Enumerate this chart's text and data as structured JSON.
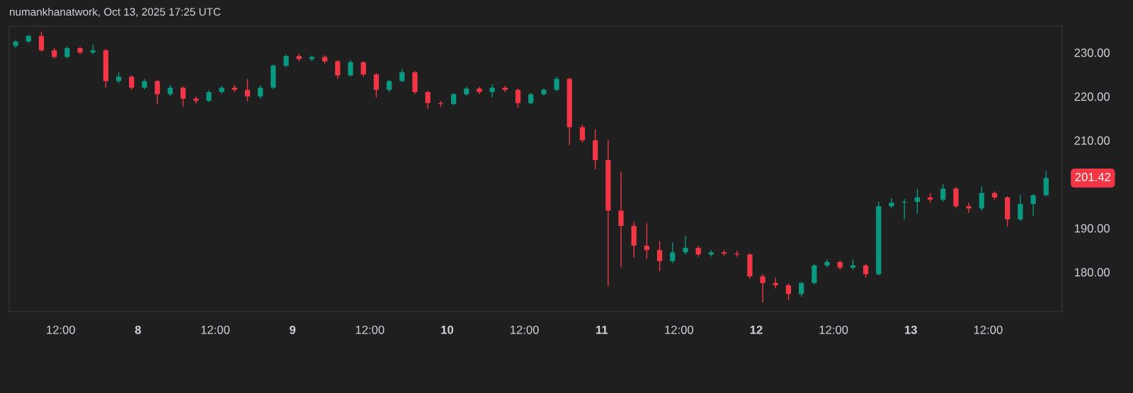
{
  "chart_data": {
    "type": "candlestick",
    "title": "numankhanatwork, Oct 13, 2025 17:25 UTC",
    "x": [
      "2025-10-07T05:00",
      "2025-10-07T07:00",
      "2025-10-07T09:00",
      "2025-10-07T11:00",
      "2025-10-07T13:00",
      "2025-10-07T15:00",
      "2025-10-07T17:00",
      "2025-10-07T19:00",
      "2025-10-07T21:00",
      "2025-10-07T23:00",
      "2025-10-08T01:00",
      "2025-10-08T03:00",
      "2025-10-08T05:00",
      "2025-10-08T07:00",
      "2025-10-08T09:00",
      "2025-10-08T11:00",
      "2025-10-08T13:00",
      "2025-10-08T15:00",
      "2025-10-08T17:00",
      "2025-10-08T19:00",
      "2025-10-08T21:00",
      "2025-10-08T23:00",
      "2025-10-09T01:00",
      "2025-10-09T03:00",
      "2025-10-09T05:00",
      "2025-10-09T07:00",
      "2025-10-09T09:00",
      "2025-10-09T11:00",
      "2025-10-09T13:00",
      "2025-10-09T15:00",
      "2025-10-09T17:00",
      "2025-10-09T19:00",
      "2025-10-09T21:00",
      "2025-10-09T23:00",
      "2025-10-10T01:00",
      "2025-10-10T03:00",
      "2025-10-10T05:00",
      "2025-10-10T07:00",
      "2025-10-10T09:00",
      "2025-10-10T11:00",
      "2025-10-10T13:00",
      "2025-10-10T15:00",
      "2025-10-10T17:00",
      "2025-10-10T19:00",
      "2025-10-10T21:00",
      "2025-10-10T23:00",
      "2025-10-11T01:00",
      "2025-10-11T03:00",
      "2025-10-11T05:00",
      "2025-10-11T07:00",
      "2025-10-11T09:00",
      "2025-10-11T11:00",
      "2025-10-11T13:00",
      "2025-10-11T15:00",
      "2025-10-11T17:00",
      "2025-10-11T19:00",
      "2025-10-11T21:00",
      "2025-10-11T23:00",
      "2025-10-12T01:00",
      "2025-10-12T03:00",
      "2025-10-12T05:00",
      "2025-10-12T07:00",
      "2025-10-12T09:00",
      "2025-10-12T11:00",
      "2025-10-12T13:00",
      "2025-10-12T15:00",
      "2025-10-12T17:00",
      "2025-10-12T19:00",
      "2025-10-12T21:00",
      "2025-10-12T23:00",
      "2025-10-13T01:00",
      "2025-10-13T03:00",
      "2025-10-13T05:00",
      "2025-10-13T07:00",
      "2025-10-13T09:00",
      "2025-10-13T11:00",
      "2025-10-13T13:00",
      "2025-10-13T15:00",
      "2025-10-13T17:00",
      "2025-10-13T19:00",
      "2025-10-13T21:00"
    ],
    "ohlc": [
      [
        231.5,
        232.8,
        231.0,
        232.5
      ],
      [
        232.5,
        234.0,
        232.2,
        233.8
      ],
      [
        233.8,
        234.7,
        230.2,
        230.5
      ],
      [
        230.5,
        231.0,
        228.6,
        229.0
      ],
      [
        229.0,
        231.4,
        228.7,
        231.0
      ],
      [
        231.0,
        231.3,
        229.6,
        230.0
      ],
      [
        230.0,
        231.8,
        229.6,
        230.5
      ],
      [
        230.5,
        230.8,
        222.0,
        223.5
      ],
      [
        223.5,
        225.5,
        223.0,
        224.5
      ],
      [
        224.5,
        224.8,
        221.5,
        222.0
      ],
      [
        222.0,
        224.0,
        221.6,
        223.5
      ],
      [
        223.5,
        223.8,
        218.3,
        220.5
      ],
      [
        220.5,
        222.6,
        220.0,
        222.0
      ],
      [
        222.0,
        222.3,
        217.7,
        219.5
      ],
      [
        219.5,
        220.0,
        218.4,
        219.0
      ],
      [
        219.0,
        221.4,
        218.7,
        221.0
      ],
      [
        221.0,
        222.4,
        220.6,
        222.0
      ],
      [
        222.0,
        222.6,
        221.0,
        221.5
      ],
      [
        221.5,
        224.0,
        218.9,
        220.0
      ],
      [
        220.0,
        222.5,
        219.5,
        222.0
      ],
      [
        222.0,
        227.3,
        221.6,
        227.0
      ],
      [
        227.0,
        229.5,
        226.6,
        229.2
      ],
      [
        229.2,
        229.7,
        228.0,
        228.5
      ],
      [
        228.5,
        229.4,
        228.0,
        229.0
      ],
      [
        229.0,
        229.4,
        227.5,
        228.0
      ],
      [
        228.0,
        228.3,
        224.0,
        224.8
      ],
      [
        224.8,
        228.3,
        224.5,
        227.8
      ],
      [
        227.8,
        228.0,
        224.6,
        225.0
      ],
      [
        225.0,
        225.3,
        219.8,
        221.5
      ],
      [
        221.5,
        223.8,
        221.0,
        223.5
      ],
      [
        223.5,
        226.3,
        223.2,
        225.5
      ],
      [
        225.5,
        225.8,
        220.5,
        221.0
      ],
      [
        221.0,
        221.3,
        217.2,
        218.5
      ],
      [
        218.5,
        219.0,
        217.6,
        218.3
      ],
      [
        218.3,
        220.8,
        218.0,
        220.5
      ],
      [
        220.5,
        222.2,
        220.2,
        221.8
      ],
      [
        221.8,
        222.2,
        220.5,
        221.0
      ],
      [
        221.0,
        222.8,
        219.8,
        222.0
      ],
      [
        222.0,
        222.4,
        221.0,
        221.5
      ],
      [
        221.5,
        221.8,
        217.5,
        218.5
      ],
      [
        218.5,
        220.8,
        218.2,
        220.5
      ],
      [
        220.5,
        221.8,
        220.2,
        221.5
      ],
      [
        221.5,
        224.5,
        221.2,
        224.0
      ],
      [
        224.0,
        224.3,
        208.9,
        213.0
      ],
      [
        213.0,
        213.6,
        209.5,
        210.0
      ],
      [
        210.0,
        212.5,
        203.4,
        205.5
      ],
      [
        205.5,
        210.0,
        176.8,
        194.0
      ],
      [
        194.0,
        202.8,
        181.1,
        190.5
      ],
      [
        190.5,
        191.5,
        183.3,
        186.0
      ],
      [
        186.0,
        191.1,
        183.0,
        185.0
      ],
      [
        185.0,
        187.0,
        180.2,
        182.5
      ],
      [
        182.5,
        186.8,
        182.0,
        184.5
      ],
      [
        184.5,
        188.2,
        184.0,
        185.5
      ],
      [
        185.5,
        186.0,
        183.5,
        184.0
      ],
      [
        184.0,
        185.0,
        183.5,
        184.5
      ],
      [
        184.5,
        185.0,
        183.7,
        184.2
      ],
      [
        184.2,
        184.8,
        183.5,
        184.0
      ],
      [
        184.0,
        184.3,
        178.5,
        179.0
      ],
      [
        179.0,
        179.5,
        173.1,
        177.5
      ],
      [
        177.5,
        178.7,
        176.3,
        177.0
      ],
      [
        177.0,
        177.4,
        173.6,
        175.0
      ],
      [
        175.0,
        177.8,
        174.4,
        177.5
      ],
      [
        177.5,
        181.8,
        177.2,
        181.5
      ],
      [
        181.5,
        182.9,
        181.0,
        182.3
      ],
      [
        182.3,
        182.6,
        180.5,
        181.0
      ],
      [
        181.0,
        182.9,
        180.5,
        181.5
      ],
      [
        181.5,
        181.8,
        178.7,
        179.5
      ],
      [
        179.5,
        196.0,
        179.2,
        195.0
      ],
      [
        195.0,
        196.8,
        194.5,
        195.8
      ],
      [
        195.8,
        196.6,
        192.0,
        196.0
      ],
      [
        196.0,
        199.0,
        193.3,
        197.0
      ],
      [
        197.0,
        198.0,
        195.8,
        196.5
      ],
      [
        196.5,
        200.0,
        196.0,
        199.0
      ],
      [
        199.0,
        199.4,
        194.6,
        195.0
      ],
      [
        195.0,
        195.8,
        193.5,
        194.5
      ],
      [
        194.5,
        199.5,
        194.0,
        198.0
      ],
      [
        198.0,
        198.4,
        196.5,
        197.0
      ],
      [
        197.0,
        197.3,
        190.4,
        192.0
      ],
      [
        192.0,
        197.6,
        191.6,
        195.5
      ],
      [
        195.5,
        197.8,
        192.8,
        197.5
      ],
      [
        197.5,
        203.0,
        197.2,
        201.42
      ]
    ],
    "xlim": [
      "2025-10-07T04:00",
      "2025-10-13T23:30"
    ],
    "xticks": [
      {
        "value": "2025-10-07T12:00",
        "label": "12:00"
      },
      {
        "value": "2025-10-08",
        "label": "8"
      },
      {
        "value": "2025-10-08T12:00",
        "label": "12:00"
      },
      {
        "value": "2025-10-09",
        "label": "9"
      },
      {
        "value": "2025-10-09T12:00",
        "label": "12:00"
      },
      {
        "value": "2025-10-10",
        "label": "10"
      },
      {
        "value": "2025-10-10T12:00",
        "label": "12:00"
      },
      {
        "value": "2025-10-11",
        "label": "11"
      },
      {
        "value": "2025-10-11T12:00",
        "label": "12:00"
      },
      {
        "value": "2025-10-12",
        "label": "12"
      },
      {
        "value": "2025-10-12T12:00",
        "label": "12:00"
      },
      {
        "value": "2025-10-13",
        "label": "13"
      },
      {
        "value": "2025-10-13T12:00",
        "label": "12:00"
      }
    ],
    "ylim": [
      171,
      236
    ],
    "yticks": [
      {
        "value": 180,
        "label": "180.00"
      },
      {
        "value": 190,
        "label": "190.00"
      },
      {
        "value": 210,
        "label": "210.00"
      },
      {
        "value": 220,
        "label": "220.00"
      },
      {
        "value": 230,
        "label": "230.00"
      }
    ],
    "annotations": [
      {
        "text": "201.42",
        "x": "2025-10-13T21:00",
        "y": 201.42
      }
    ],
    "grid": false
  }
}
